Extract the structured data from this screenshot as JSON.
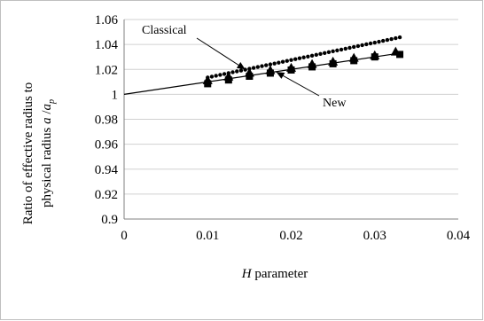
{
  "chart_data": {
    "type": "line",
    "xlabel": {
      "italic": "H",
      "rest": " parameter"
    },
    "ylabel": {
      "line1": "Ratio of effective  radius to",
      "line2": "physical radius  ",
      "symbol": "a",
      "sep": " /",
      "symbol2": "a",
      "sub": "p"
    },
    "xlim": [
      0,
      0.04
    ],
    "ylim": [
      0.9,
      1.06
    ],
    "x_ticks": [
      0,
      0.01,
      0.02,
      0.03,
      0.04
    ],
    "x_tick_labels": [
      "0",
      "0.01",
      "0.02",
      "0.03",
      "0.04"
    ],
    "y_ticks": [
      0.9,
      0.92,
      0.94,
      0.96,
      0.98,
      1.0,
      1.02,
      1.04,
      1.06
    ],
    "y_tick_labels": [
      "0.9",
      "0.92",
      "0.94",
      "0.96",
      "0.98",
      "1",
      "1.02",
      "1.04",
      "1.06"
    ],
    "grid": "horizontal",
    "annotations": [
      {
        "text": "Classical",
        "target": [
          0.0145,
          1.02
        ]
      },
      {
        "text": "New",
        "target": [
          0.0182,
          1.018
        ]
      }
    ],
    "series": [
      {
        "marker": "dot",
        "x": [
          0.01,
          0.0105,
          0.011,
          0.0115,
          0.012,
          0.0125,
          0.013,
          0.0135,
          0.014,
          0.0145,
          0.015,
          0.0155,
          0.016,
          0.0165,
          0.017,
          0.0175,
          0.018,
          0.0185,
          0.019,
          0.0195,
          0.02,
          0.0205,
          0.021,
          0.0215,
          0.022,
          0.0225,
          0.023,
          0.0235,
          0.024,
          0.0245,
          0.025,
          0.0255,
          0.026,
          0.0265,
          0.027,
          0.0275,
          0.028,
          0.0285,
          0.029,
          0.0295,
          0.03,
          0.0305,
          0.031,
          0.0315,
          0.032,
          0.0325,
          0.033
        ],
        "y": [
          1.0135,
          1.0142,
          1.0149,
          1.0156,
          1.0163,
          1.017,
          1.0177,
          1.0184,
          1.0191,
          1.0198,
          1.0205,
          1.0212,
          1.0219,
          1.0226,
          1.0233,
          1.024,
          1.0247,
          1.0254,
          1.0261,
          1.0268,
          1.0275,
          1.0282,
          1.0289,
          1.0296,
          1.0303,
          1.031,
          1.0317,
          1.0324,
          1.0331,
          1.0338,
          1.0345,
          1.0352,
          1.0359,
          1.0366,
          1.0373,
          1.038,
          1.0387,
          1.0394,
          1.0401,
          1.0408,
          1.0415,
          1.0422,
          1.0429,
          1.0436,
          1.0443,
          1.045,
          1.0457
        ]
      },
      {
        "marker": "triangle",
        "x": [
          0.01,
          0.0125,
          0.015,
          0.0175,
          0.02,
          0.0225,
          0.025,
          0.0275,
          0.03,
          0.0325
        ],
        "y": [
          1.011,
          1.014,
          1.017,
          1.019,
          1.021,
          1.024,
          1.026,
          1.029,
          1.031,
          1.034
        ]
      },
      {
        "marker": "square",
        "x": [
          0.01,
          0.0125,
          0.015,
          0.0175,
          0.02,
          0.0225,
          0.025,
          0.0275,
          0.03,
          0.033
        ],
        "y": [
          1.0085,
          1.0115,
          1.0145,
          1.017,
          1.0195,
          1.022,
          1.0245,
          1.027,
          1.03,
          1.032
        ]
      },
      {
        "marker": "none",
        "x": [
          0,
          0.033
        ],
        "y": [
          1.0,
          1.033
        ]
      }
    ]
  }
}
